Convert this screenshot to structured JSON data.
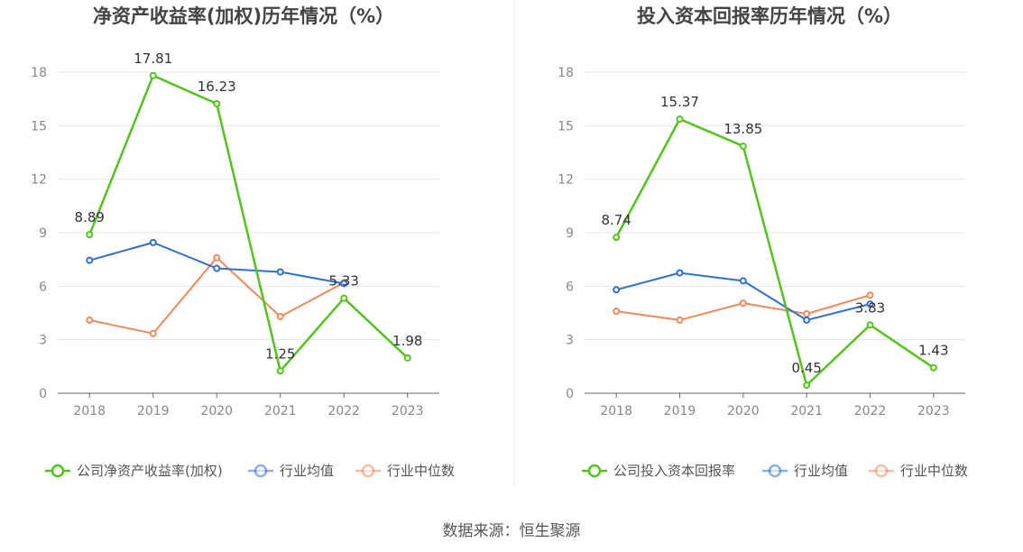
{
  "footer": {
    "source": "数据来源：恒生聚源"
  },
  "colors": {
    "company": "#52c41a",
    "avg": "#2f6fd6",
    "median": "#f08a5d",
    "axis": "#666666",
    "grid": "#e6e6e6",
    "tick": "#888888",
    "label": "#333333"
  },
  "chart_data": [
    {
      "type": "line",
      "title": "净资产收益率(加权)历年情况（%）",
      "categories": [
        "2018",
        "2019",
        "2020",
        "2021",
        "2022",
        "2023"
      ],
      "ylim": [
        0,
        18
      ],
      "yticks": [
        0,
        3,
        6,
        9,
        12,
        15,
        18
      ],
      "grid": true,
      "legend_position": "bottom",
      "series": [
        {
          "name": "公司净资产收益率(加权)",
          "color": "#52c41a",
          "values": [
            8.89,
            17.81,
            16.23,
            1.25,
            5.33,
            1.98
          ],
          "labels": [
            "8.89",
            "17.81",
            "16.23",
            "1.25",
            "5.33",
            "1.98"
          ]
        },
        {
          "name": "行业均值",
          "color": "#2f6fd6",
          "values": [
            7.45,
            8.45,
            7.0,
            6.8,
            6.15,
            null
          ]
        },
        {
          "name": "行业中位数",
          "color": "#f08a5d",
          "values": [
            4.1,
            3.35,
            7.6,
            4.3,
            6.2,
            null
          ]
        }
      ]
    },
    {
      "type": "line",
      "title": "投入资本回报率历年情况（%）",
      "categories": [
        "2018",
        "2019",
        "2020",
        "2021",
        "2022",
        "2023"
      ],
      "ylim": [
        0,
        18
      ],
      "yticks": [
        0,
        3,
        6,
        9,
        12,
        15,
        18
      ],
      "grid": true,
      "legend_position": "bottom",
      "series": [
        {
          "name": "公司投入资本回报率",
          "color": "#52c41a",
          "values": [
            8.74,
            15.37,
            13.85,
            0.45,
            3.83,
            1.43
          ],
          "labels": [
            "8.74",
            "15.37",
            "13.85",
            "0.45",
            "3.83",
            "1.43"
          ]
        },
        {
          "name": "行业均值",
          "color": "#2f6fd6",
          "values": [
            5.8,
            6.75,
            6.3,
            4.1,
            5.0,
            null
          ]
        },
        {
          "name": "行业中位数",
          "color": "#f08a5d",
          "values": [
            4.6,
            4.1,
            5.05,
            4.45,
            5.5,
            null
          ]
        }
      ]
    }
  ]
}
